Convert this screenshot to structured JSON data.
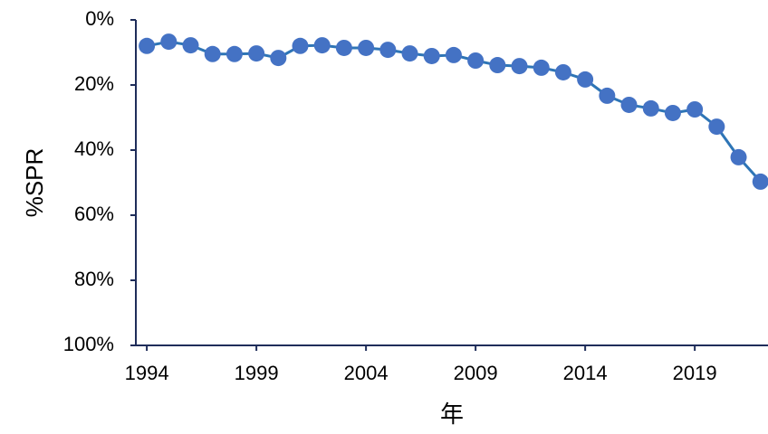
{
  "chart_data": {
    "type": "line",
    "x_label": "年",
    "y_label": "%SPR",
    "x": [
      1994,
      1995,
      1996,
      1997,
      1998,
      1999,
      2000,
      2001,
      2002,
      2003,
      2004,
      2005,
      2006,
      2007,
      2008,
      2009,
      2010,
      2011,
      2012,
      2013,
      2014,
      2015,
      2016,
      2017,
      2018,
      2019,
      2020,
      2021,
      2022
    ],
    "series": [
      {
        "name": "%SPR",
        "color": "#4472c4",
        "line_color": "#2e75b6",
        "values": [
          8,
          6.7,
          7.8,
          10.5,
          10.5,
          10.3,
          11.7,
          8,
          7.8,
          8.6,
          8.6,
          9.2,
          10.3,
          11.1,
          10.8,
          12.5,
          13.9,
          14.2,
          14.7,
          16.1,
          18.3,
          23.3,
          26.1,
          27.2,
          28.6,
          27.5,
          32.8,
          42.2,
          49.7
        ]
      }
    ],
    "xlim": [
      1993.5,
      2022.3
    ],
    "xticks": [
      1994,
      1999,
      2004,
      2009,
      2014,
      2019
    ],
    "ylim": [
      0,
      100
    ],
    "y_inverted": true,
    "yticks": [
      {
        "value": 0,
        "label": "0%"
      },
      {
        "value": 20,
        "label": "20%"
      },
      {
        "value": 40,
        "label": "40%"
      },
      {
        "value": 60,
        "label": "60%"
      },
      {
        "value": 80,
        "label": "80%"
      },
      {
        "value": 100,
        "label": "100%"
      }
    ],
    "grid": false
  }
}
